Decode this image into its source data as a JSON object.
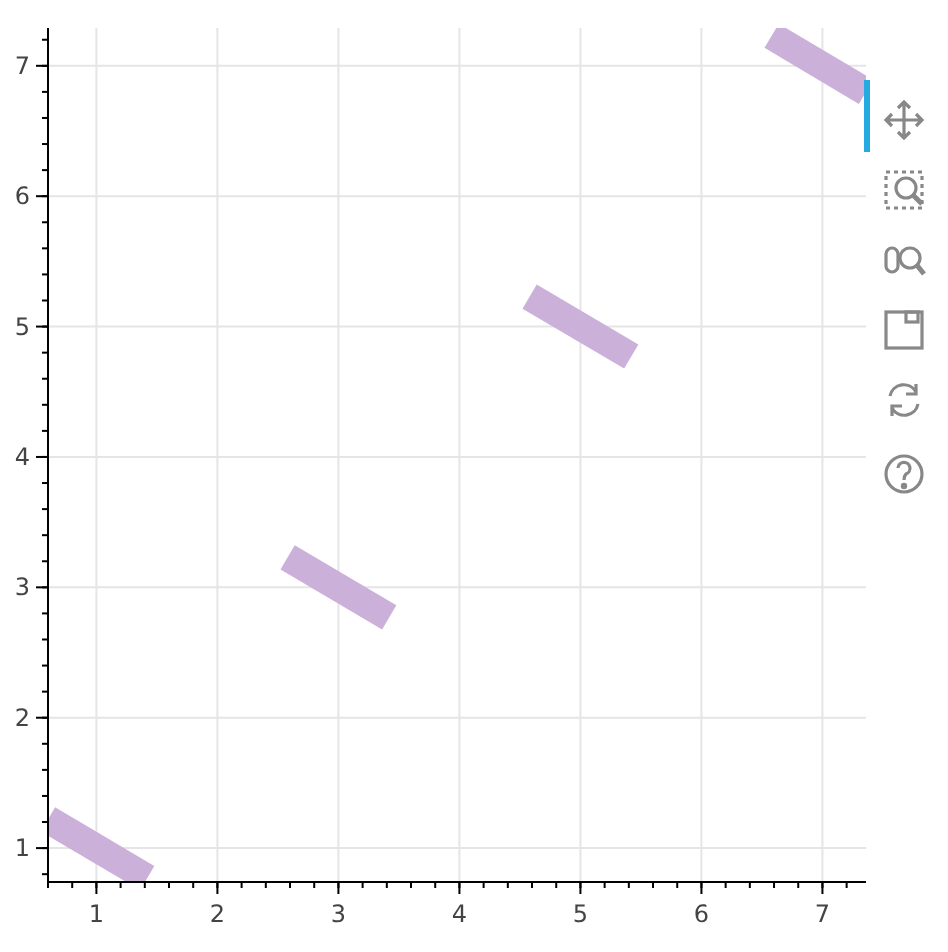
{
  "chart_data": {
    "type": "line",
    "xlim": [
      0.6,
      7.36
    ],
    "ylim": [
      0.74,
      7.29
    ],
    "xticks": [
      1,
      2,
      3,
      4,
      5,
      6,
      7
    ],
    "yticks": [
      1,
      2,
      3,
      4,
      5,
      6,
      7
    ],
    "grid": true,
    "marker": "none",
    "series": [
      {
        "color": "#cbb0da",
        "x": [
          0.6,
          1.42
        ],
        "values": [
          1.22,
          0.77
        ]
      },
      {
        "color": "#cbb0da",
        "x": [
          2.58,
          3.42
        ],
        "values": [
          3.23,
          2.77
        ]
      },
      {
        "color": "#cbb0da",
        "x": [
          4.58,
          5.42
        ],
        "values": [
          5.23,
          4.77
        ]
      },
      {
        "color": "#cbb0da",
        "x": [
          6.58,
          7.36
        ],
        "values": [
          7.23,
          6.8
        ]
      }
    ]
  }
}
